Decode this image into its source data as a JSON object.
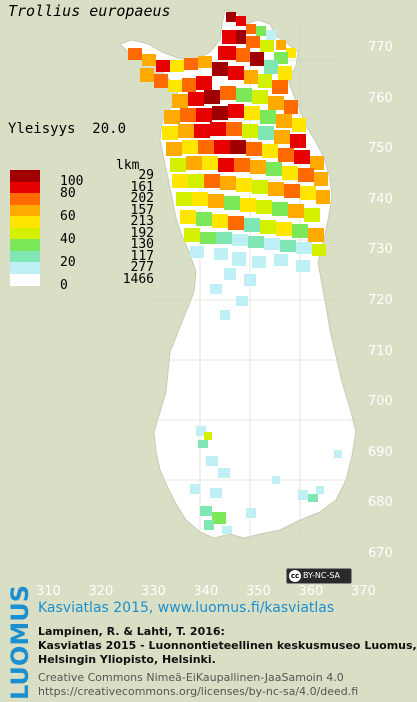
{
  "map": {
    "species": "Trollius europaeus",
    "frequency_label": "Yleisyys",
    "frequency_value": "20.0",
    "legend": {
      "count_header": "lkm",
      "classes": [
        {
          "label": "100",
          "count": "29",
          "color": "#a00000"
        },
        {
          "label": "80",
          "count": "161",
          "color": "#e60000"
        },
        {
          "label": "",
          "count": "202",
          "color": "#ff6a00"
        },
        {
          "label": "60",
          "count": "157",
          "color": "#ffaa00"
        },
        {
          "label": "",
          "count": "213",
          "color": "#ffe600"
        },
        {
          "label": "40",
          "count": "192",
          "color": "#d2f000"
        },
        {
          "label": "",
          "count": "130",
          "color": "#7be85a"
        },
        {
          "label": "20",
          "count": "117",
          "color": "#7fe6b4"
        },
        {
          "label": "",
          "count": "277",
          "color": "#bff0f5"
        },
        {
          "label": "0",
          "count": "1466",
          "color": "#ffffff"
        }
      ]
    },
    "northing_ticks": [
      "770",
      "760",
      "750",
      "740",
      "730",
      "720",
      "710",
      "700",
      "690",
      "680",
      "670"
    ],
    "easting_ticks": [
      "310",
      "320",
      "330",
      "340",
      "350",
      "360",
      "370"
    ],
    "colors": {
      "background": "#d8dfc4",
      "map_base": "#ffffff",
      "brand_blue": "#1c8fd0"
    }
  },
  "license_badge": "BY-NC-SA",
  "footer": {
    "brand": "LUOMUS",
    "title": "Kasviatlas 2015, www.luomus.fi/kasviatlas",
    "citation": [
      "Lampinen, R. & Lahti, T. 2016:",
      "Kasviatlas 2015 - Luonnontieteellinen keskusmuseo Luomus,",
      "Helsingin Yliopisto, Helsinki."
    ],
    "license": [
      "Creative Commons Nimeä-EiKaupallinen-JaaSamoin 4.0",
      "https://creativecommons.org/licenses/by-nc-sa/4.0/deed.fi"
    ]
  }
}
